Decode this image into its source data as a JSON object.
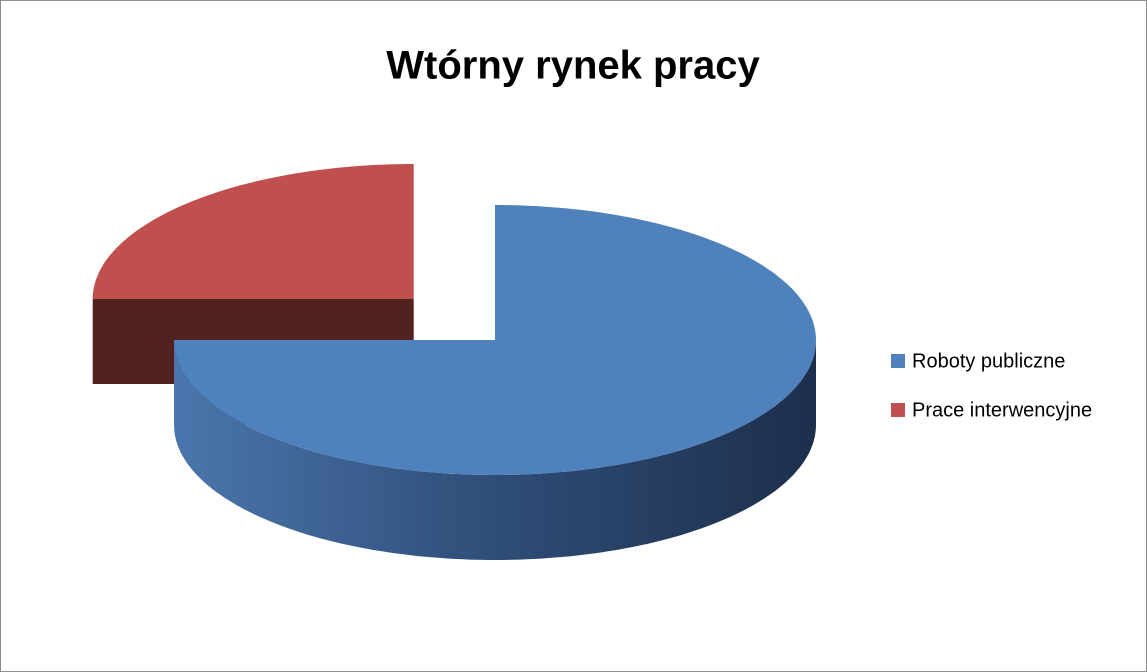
{
  "chart_data": {
    "type": "pie",
    "title": "Wtórny rynek pracy",
    "categories": [
      "Roboty publiczne",
      "Prace interwencyjne"
    ],
    "values": [
      75,
      25
    ],
    "colors": [
      "#4f81bd",
      "#c0504d"
    ],
    "legend": "right"
  }
}
